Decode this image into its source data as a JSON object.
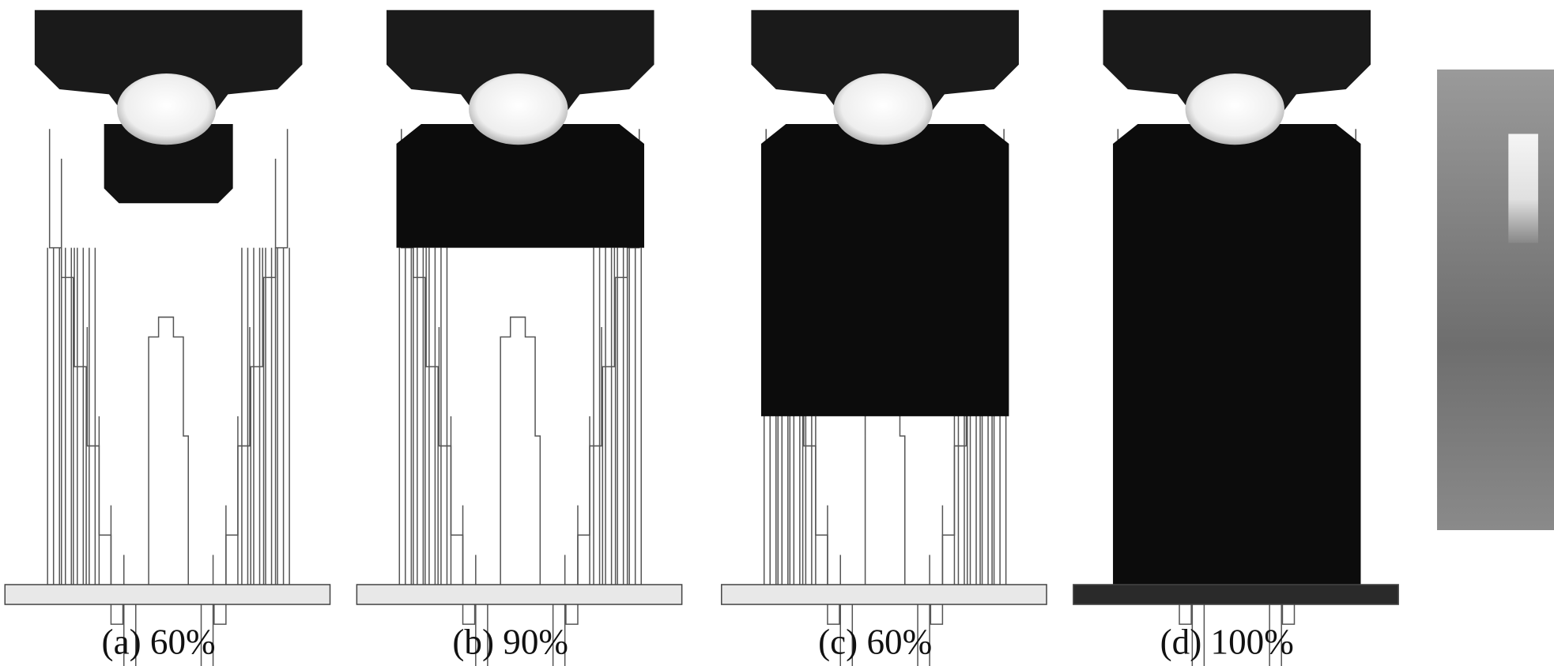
{
  "figure": {
    "panels": [
      {
        "caption": "(a) 60%"
      },
      {
        "caption": "(b) 90%"
      },
      {
        "caption": "(c) 60%"
      },
      {
        "caption": "(d) 100%"
      }
    ]
  }
}
